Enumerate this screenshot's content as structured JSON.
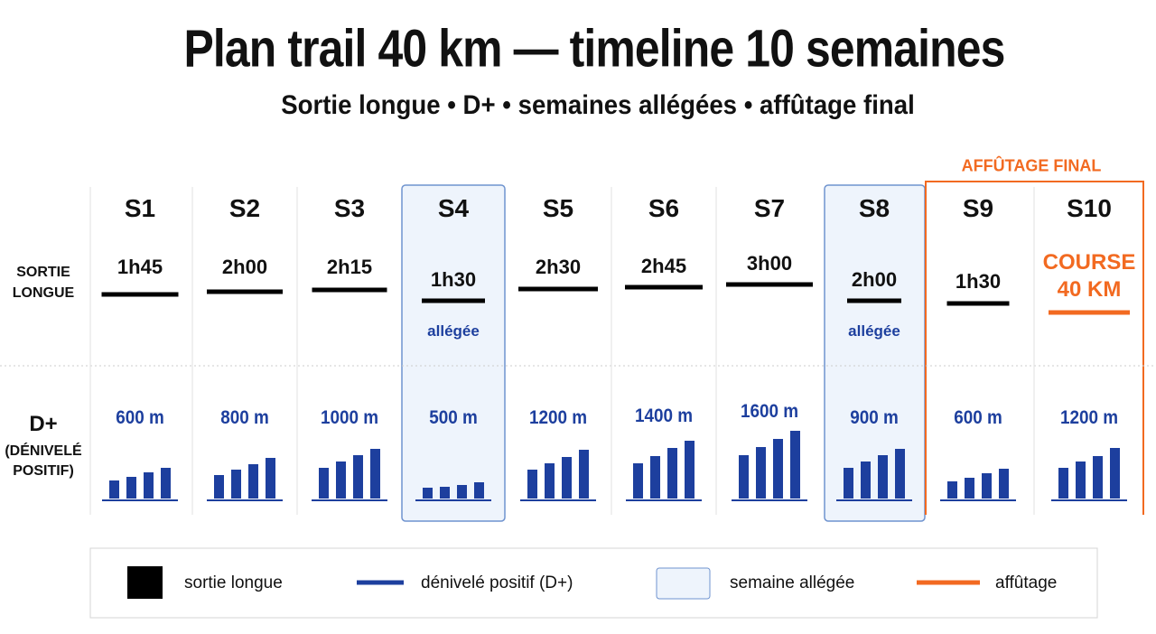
{
  "header": {
    "title": "Plan trail 40 km — timeline 10 semaines",
    "subtitle": "Sortie longue • D+ • semaines allégées • affûtage final"
  },
  "row_labels": {
    "long_run": "SORTIE LONGUE",
    "dplus": "D+",
    "dplus_detail": "(DÉNIVELÉ POSITIF)"
  },
  "taper_label": "AFFÛTAGE FINAL",
  "weeks": [
    {
      "label": "S1",
      "long_run": "1h45",
      "dplus": "600 m"
    },
    {
      "label": "S2",
      "long_run": "2h00",
      "dplus": "800 m"
    },
    {
      "label": "S3",
      "long_run": "2h15",
      "dplus": "1000 m"
    },
    {
      "label": "S4",
      "long_run": "1h30",
      "note": "allégée",
      "dplus": "500 m"
    },
    {
      "label": "S5",
      "long_run": "2h30",
      "dplus": "1200 m"
    },
    {
      "label": "S6",
      "long_run": "2h45",
      "dplus": "1400 m"
    },
    {
      "label": "S7",
      "long_run": "3h00",
      "dplus": "1600 m"
    },
    {
      "label": "S8",
      "long_run": "2h00",
      "note": "allégée",
      "dplus": "900 m"
    },
    {
      "label": "S9",
      "long_run": "1h30",
      "dplus": "600 m"
    },
    {
      "label": "S10",
      "long_run": "COURSE 40 KM",
      "dplus": "1200 m"
    }
  ],
  "legend": [
    "sortie longue",
    "dénivelé positif (D+)",
    "semaine allégée",
    "affûtage"
  ]
}
